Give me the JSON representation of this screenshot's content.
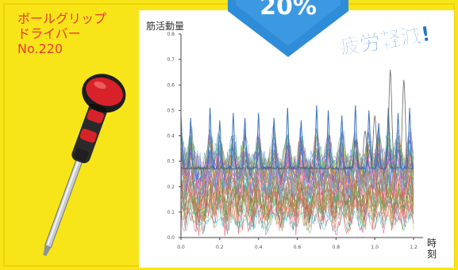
{
  "product": {
    "lines": [
      "ボールグリップ",
      "ドライバー",
      "No.220"
    ]
  },
  "badge": {
    "number": "20%"
  },
  "headline": "疲労軽減!",
  "colors": {
    "background_yellow": "#f7e51a",
    "title_red": "#ec3a2e",
    "badge_blue": "#2f8cd8",
    "headline_blue": "#1e74c7",
    "grip_red": "#d8222a",
    "grip_black": "#2a2a2a"
  },
  "chart_data": {
    "type": "line",
    "ylabel": "筋活動量",
    "xlabel_chars": [
      "時",
      "刻"
    ],
    "xlim": [
      0.0,
      1.2
    ],
    "ylim": [
      0.0,
      0.8
    ],
    "x_ticks": [
      "0.0",
      "0.2",
      "0.4",
      "0.6",
      "0.8",
      "1.0",
      "1.2"
    ],
    "y_ticks": [
      "0.0",
      "0.1",
      "0.2",
      "0.3",
      "0.4",
      "0.5",
      "0.6",
      "0.7",
      "0.8"
    ],
    "grid": false,
    "legend": "none",
    "series": [
      {
        "peaks": [
          [
            0.0,
            0.48
          ],
          [
            0.05,
            0.47
          ],
          [
            0.15,
            0.51
          ],
          [
            0.2,
            0.46
          ],
          [
            0.27,
            0.49
          ],
          [
            0.33,
            0.47
          ],
          [
            0.4,
            0.49
          ],
          [
            0.48,
            0.47
          ],
          [
            0.55,
            0.51
          ],
          [
            0.62,
            0.46
          ],
          [
            0.7,
            0.52
          ],
          [
            0.76,
            0.5
          ],
          [
            0.83,
            0.48
          ],
          [
            0.9,
            0.52
          ],
          [
            0.97,
            0.5
          ],
          [
            1.02,
            0.45
          ],
          [
            1.07,
            0.51
          ],
          [
            1.12,
            0.49
          ],
          [
            1.18,
            0.51
          ]
        ]
      },
      {
        "peaks": [
          [
            0.9,
            0.38
          ],
          [
            0.95,
            0.42
          ],
          [
            1.0,
            0.48
          ],
          [
            1.08,
            0.66
          ],
          [
            1.15,
            0.62
          ]
        ]
      }
    ]
  }
}
